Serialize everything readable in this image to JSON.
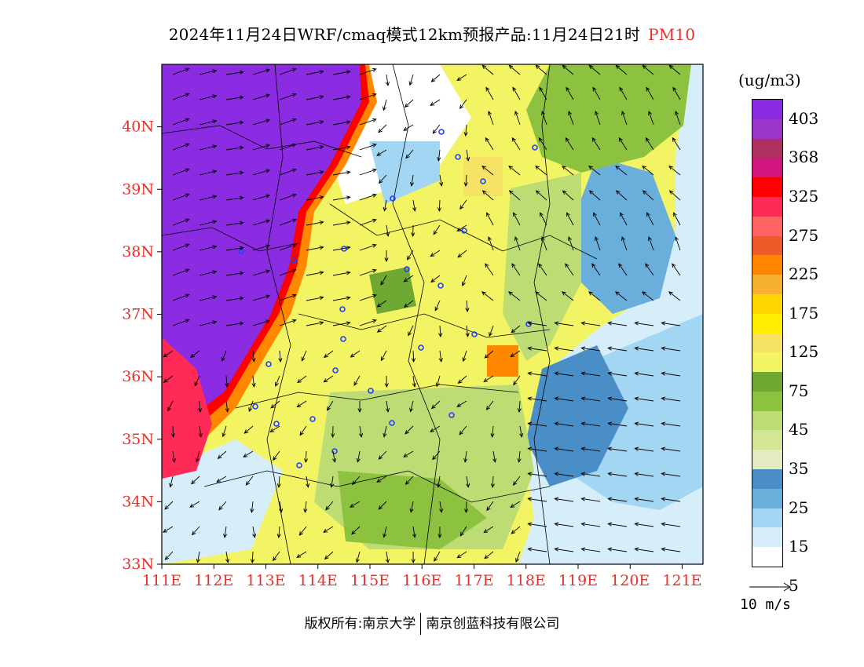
{
  "header": {
    "title_main": "2024年11月24日WRF/cmaq模式12km预报产品:11月24日21时",
    "pollutant": "PM10"
  },
  "map": {
    "lat_labels": [
      "40N",
      "39N",
      "38N",
      "37N",
      "36N",
      "35N",
      "34N",
      "33N"
    ],
    "lon_labels": [
      "111E",
      "112E",
      "113E",
      "114E",
      "115E",
      "116E",
      "117E",
      "118E",
      "119E",
      "120E",
      "121E"
    ],
    "extent": {
      "lon_min": 111,
      "lon_max": 121.4,
      "lat_min": 33,
      "lat_max": 41
    },
    "label_color": "#e8302a"
  },
  "legend": {
    "unit": "(ug/m3)",
    "labels": [
      "403",
      "368",
      "325",
      "275",
      "225",
      "175",
      "125",
      "75",
      "45",
      "35",
      "25",
      "15",
      "5"
    ],
    "colors": [
      "#8b2be2",
      "#9b36c8",
      "#b03060",
      "#d2157e",
      "#ff0000",
      "#ff2a55",
      "#ff6464",
      "#f05a28",
      "#ff8800",
      "#f8b030",
      "#ffd700",
      "#ffee00",
      "#f6e264",
      "#f2f464",
      "#6fa832",
      "#8cc240",
      "#bedc74",
      "#d2e696",
      "#e2ecc0",
      "#4a8ec8",
      "#6aaedc",
      "#a2d6f2",
      "#d6eefa",
      "#ffffff"
    ]
  },
  "wind": {
    "reference": "10 m/s"
  },
  "footer": {
    "copyright": "版权所有:南京大学",
    "company": "南京创蓝科技有限公司"
  }
}
